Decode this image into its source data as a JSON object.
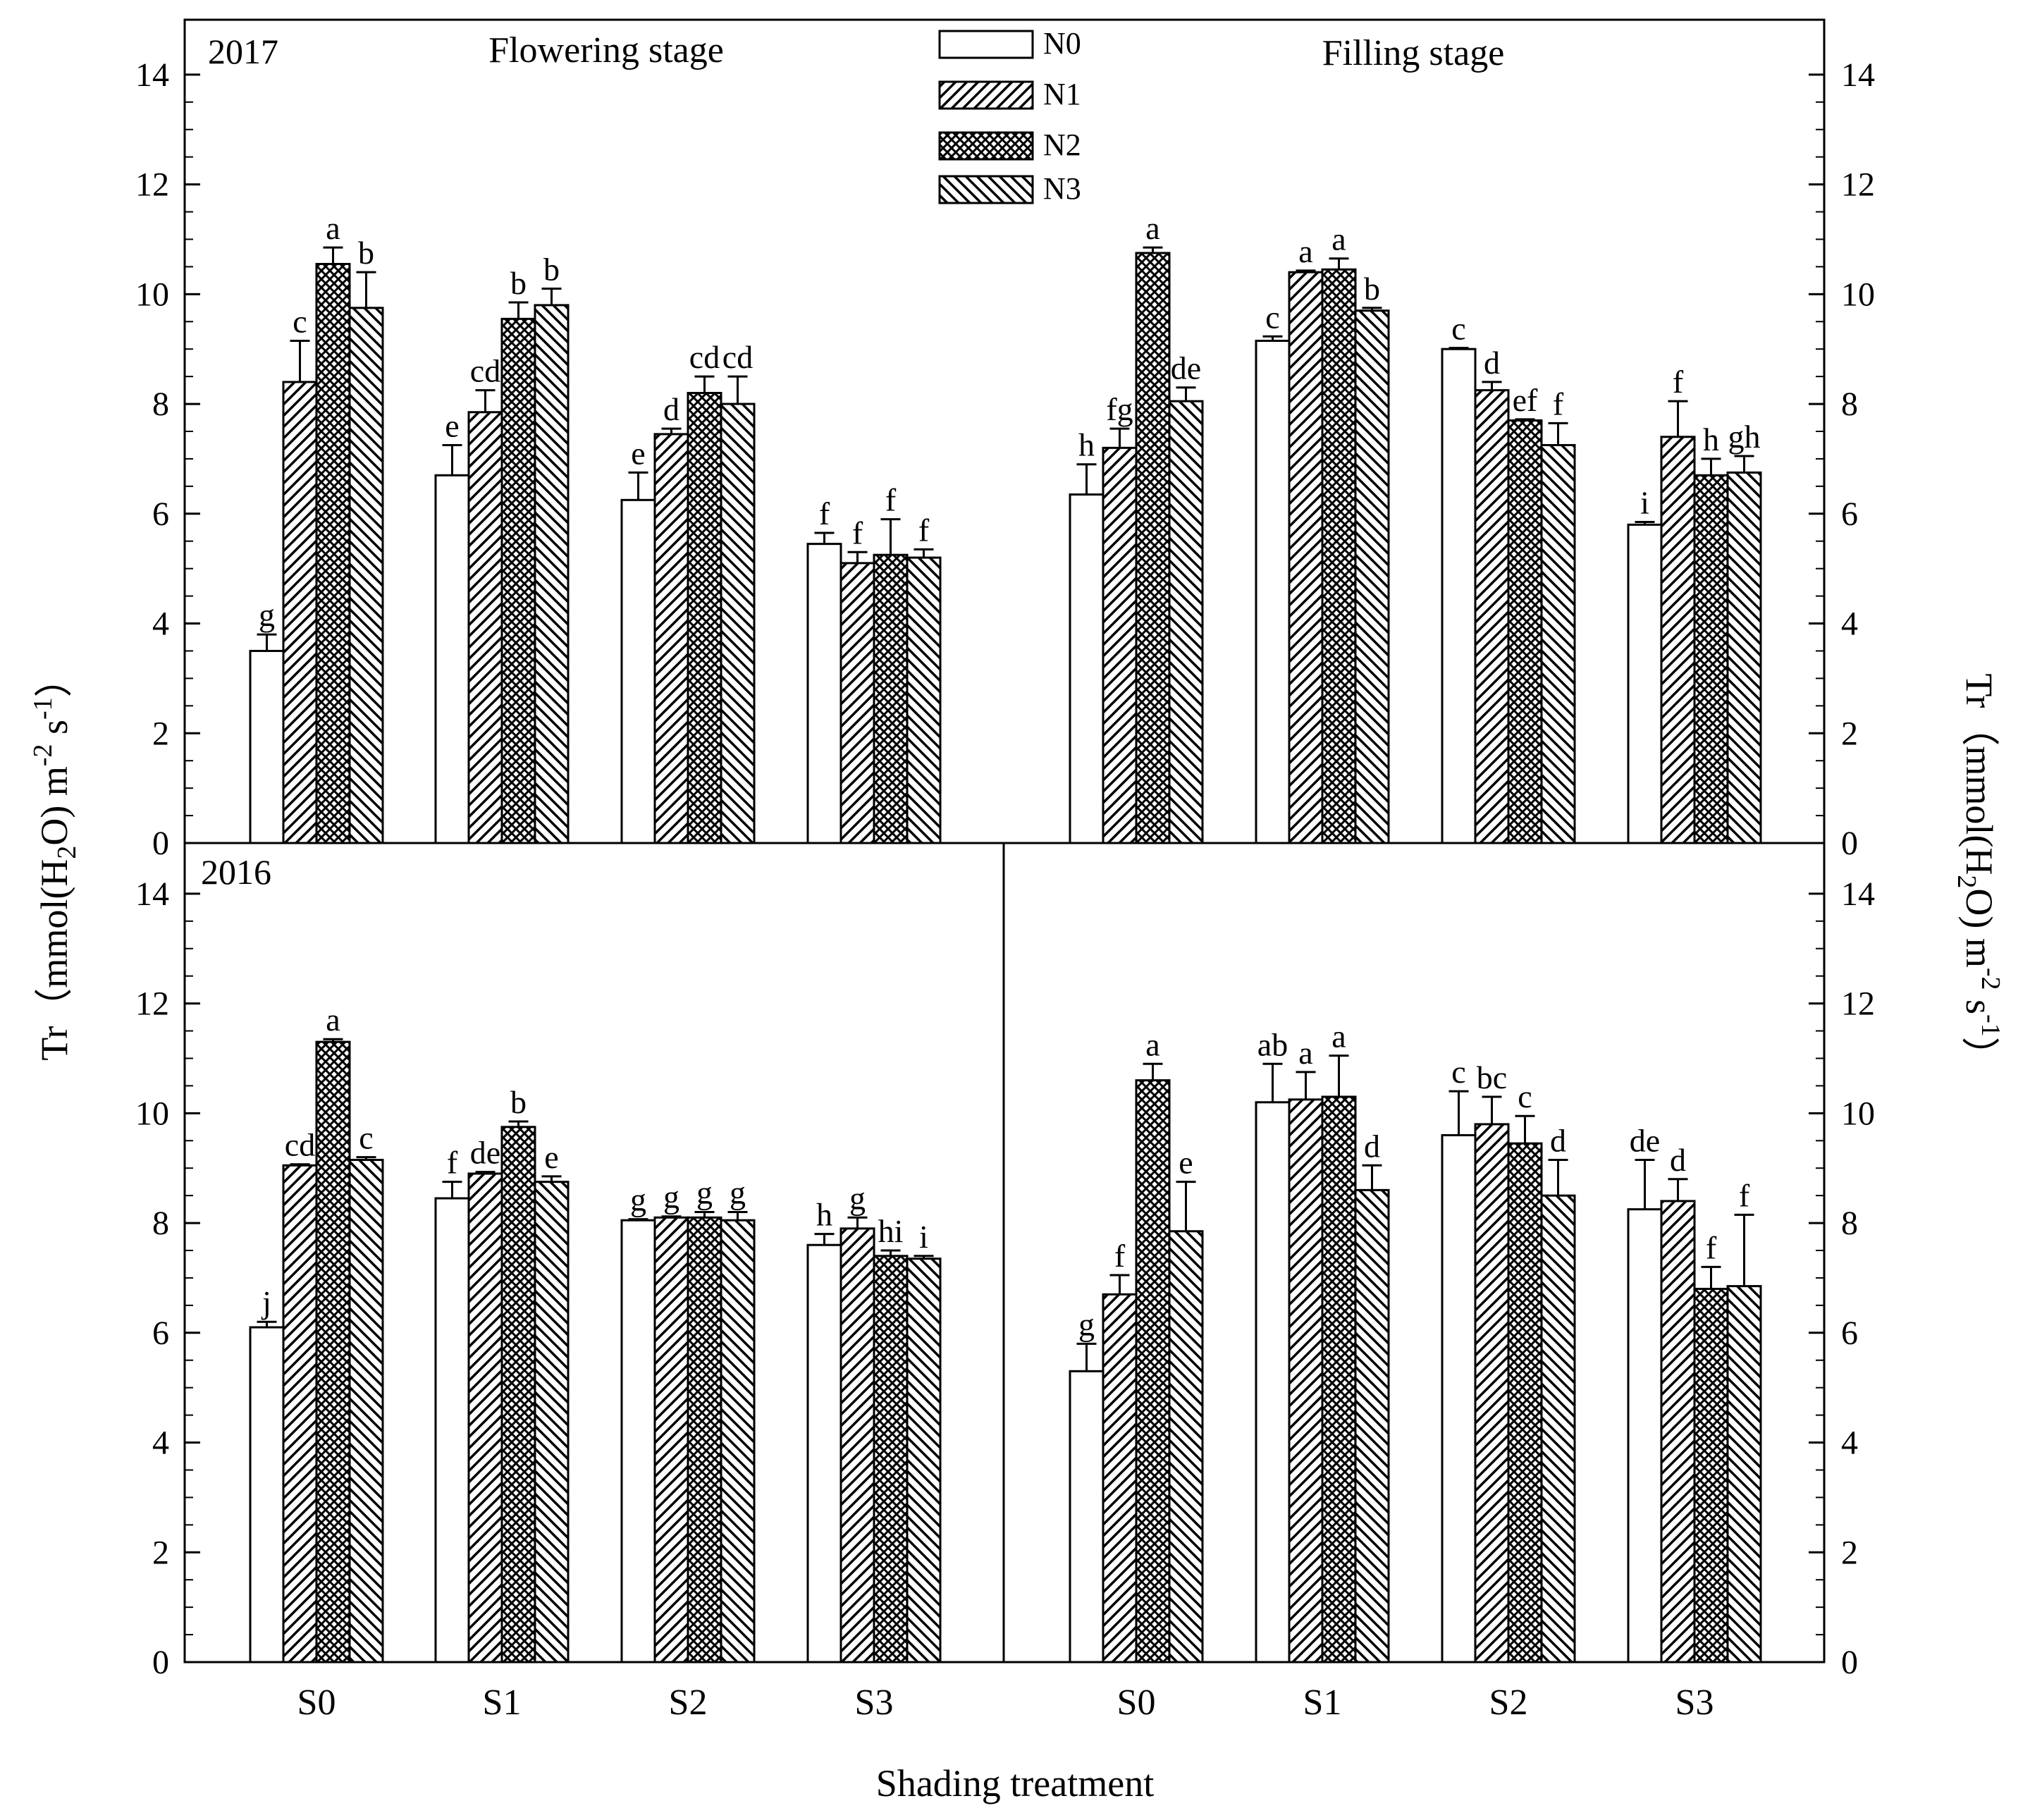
{
  "chart_data": {
    "type": "bar",
    "xlabel": "Shading treatment",
    "ylabel": "Tr (mmol(H2O) m-2 s-1)",
    "ylabel_parts": {
      "prefix": "Tr（mmol(H",
      "sub": "2",
      "mid1": "O) m",
      "sup1": "-2",
      "mid2": " s",
      "sup2": "-1",
      "suffix": "）"
    },
    "ylim": [
      0,
      15
    ],
    "yticks": [
      "0",
      "2",
      "4",
      "6",
      "8",
      "10",
      "12",
      "14"
    ],
    "categories": [
      "S0",
      "S1",
      "S2",
      "S3"
    ],
    "legend": {
      "position": "top-center",
      "entries": [
        {
          "name": "N0",
          "pattern": "white"
        },
        {
          "name": "N1",
          "pattern": "diagonal-up"
        },
        {
          "name": "N2",
          "pattern": "crosshatch"
        },
        {
          "name": "N3",
          "pattern": "diagonal-down"
        }
      ]
    },
    "stage_titles": [
      "Flowering stage",
      "Filling stage"
    ],
    "panels": [
      {
        "year": "2017",
        "stage": "Flowering stage",
        "series": [
          {
            "name": "N0",
            "values": [
              3.5,
              6.7,
              6.25,
              5.45
            ],
            "errors": [
              0.3,
              0.55,
              0.5,
              0.2
            ],
            "letters": [
              "g",
              "e",
              "e",
              "f"
            ]
          },
          {
            "name": "N1",
            "values": [
              8.4,
              7.85,
              7.45,
              5.1
            ],
            "errors": [
              0.75,
              0.4,
              0.1,
              0.2
            ],
            "letters": [
              "c",
              "cd",
              "d",
              "f"
            ]
          },
          {
            "name": "N2",
            "values": [
              10.55,
              9.55,
              8.2,
              5.25
            ],
            "errors": [
              0.3,
              0.3,
              0.3,
              0.65
            ],
            "letters": [
              "a",
              "b",
              "cd",
              "f"
            ]
          },
          {
            "name": "N3",
            "values": [
              9.75,
              9.8,
              8.0,
              5.2
            ],
            "errors": [
              0.65,
              0.3,
              0.5,
              0.15
            ],
            "letters": [
              "b",
              "b",
              "cd",
              "f"
            ]
          }
        ]
      },
      {
        "year": "",
        "stage": "Filling stage",
        "series": [
          {
            "name": "N0",
            "values": [
              6.35,
              9.15,
              9.0,
              5.8
            ],
            "errors": [
              0.55,
              0.08,
              0.02,
              0.05
            ],
            "letters": [
              "h",
              "c",
              "c",
              "i"
            ]
          },
          {
            "name": "N1",
            "values": [
              7.2,
              10.4,
              8.25,
              7.4
            ],
            "errors": [
              0.35,
              0.03,
              0.15,
              0.65
            ],
            "letters": [
              "fg",
              "a",
              "d",
              "f"
            ]
          },
          {
            "name": "N2",
            "values": [
              10.75,
              10.45,
              7.7,
              6.7
            ],
            "errors": [
              0.1,
              0.2,
              0.02,
              0.3
            ],
            "letters": [
              "a",
              "a",
              "ef",
              "h"
            ]
          },
          {
            "name": "N3",
            "values": [
              8.05,
              9.7,
              7.25,
              6.75
            ],
            "errors": [
              0.25,
              0.05,
              0.4,
              0.3
            ],
            "letters": [
              "de",
              "b",
              "f",
              "gh"
            ]
          }
        ]
      },
      {
        "year": "2016",
        "stage": "Flowering stage",
        "series": [
          {
            "name": "N0",
            "values": [
              6.1,
              8.45,
              8.05,
              7.6
            ],
            "errors": [
              0.1,
              0.3,
              0.02,
              0.2
            ],
            "letters": [
              "j",
              "f",
              "g",
              "h"
            ]
          },
          {
            "name": "N1",
            "values": [
              9.05,
              8.9,
              8.1,
              7.9
            ],
            "errors": [
              0.02,
              0.03,
              0.02,
              0.2
            ],
            "letters": [
              "cd",
              "de",
              "g",
              "g"
            ]
          },
          {
            "name": "N2",
            "values": [
              11.3,
              9.75,
              8.1,
              7.4
            ],
            "errors": [
              0.05,
              0.1,
              0.1,
              0.1
            ],
            "letters": [
              "a",
              "b",
              "g",
              "hi"
            ]
          },
          {
            "name": "N3",
            "values": [
              9.15,
              8.75,
              8.05,
              7.35
            ],
            "errors": [
              0.05,
              0.1,
              0.15,
              0.05
            ],
            "letters": [
              "c",
              "e",
              "g",
              "i"
            ]
          }
        ]
      },
      {
        "year": "",
        "stage": "Filling stage",
        "series": [
          {
            "name": "N0",
            "values": [
              5.3,
              10.2,
              9.6,
              8.25
            ],
            "errors": [
              0.5,
              0.7,
              0.8,
              0.9
            ],
            "letters": [
              "g",
              "ab",
              "c",
              "de"
            ]
          },
          {
            "name": "N1",
            "values": [
              6.7,
              10.25,
              9.8,
              8.4
            ],
            "errors": [
              0.35,
              0.5,
              0.5,
              0.4
            ],
            "letters": [
              "f",
              "a",
              "bc",
              "d"
            ]
          },
          {
            "name": "N2",
            "values": [
              10.6,
              10.3,
              9.45,
              6.8
            ],
            "errors": [
              0.3,
              0.75,
              0.5,
              0.4
            ],
            "letters": [
              "a",
              "a",
              "c",
              "f"
            ]
          },
          {
            "name": "N3",
            "values": [
              7.85,
              8.6,
              8.5,
              6.85
            ],
            "errors": [
              0.9,
              0.45,
              0.65,
              1.3
            ],
            "letters": [
              "e",
              "d",
              "d",
              "f"
            ]
          }
        ]
      }
    ]
  }
}
